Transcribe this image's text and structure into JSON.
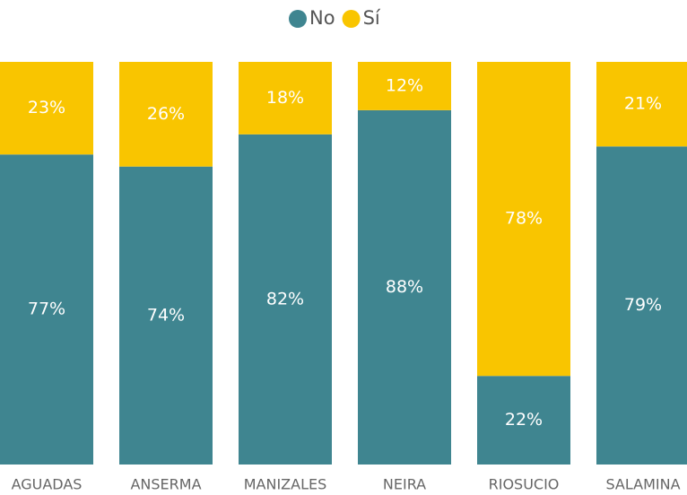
{
  "chart_data": {
    "type": "stacked_bar_100",
    "categories": [
      "AGUADAS",
      "ANSERMA",
      "MANIZALES",
      "NEIRA",
      "RIOSUCIO",
      "SALAMINA"
    ],
    "series": [
      {
        "name": "No",
        "color": "#3f8590",
        "values": [
          77,
          74,
          82,
          88,
          22,
          79
        ],
        "value_labels": [
          "77%",
          "74%",
          "82%",
          "88%",
          "22%",
          "79%"
        ]
      },
      {
        "name": "Sí",
        "color": "#f9c500",
        "values": [
          23,
          26,
          18,
          12,
          78,
          21
        ],
        "value_labels": [
          "23%",
          "26%",
          "18%",
          "12%",
          "78%",
          "21%"
        ]
      }
    ],
    "ylim": [
      0,
      100
    ],
    "legend": "top"
  }
}
